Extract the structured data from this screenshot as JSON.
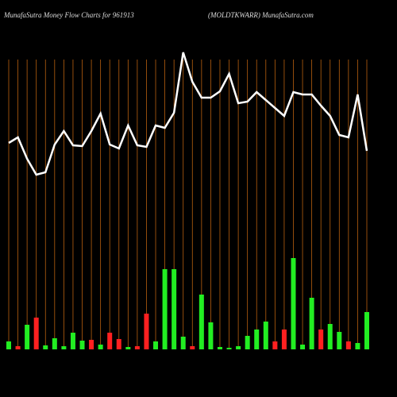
{
  "chart_data": {
    "type": "money-flow",
    "title": "MunafaSutra  Money Flow  Charts for 961913",
    "subtitle": "(MOLDTKWARR) MunafaSutra.com",
    "line": {
      "color": "#ffffff",
      "values": [
        260,
        267,
        240,
        220,
        223,
        258,
        275,
        257,
        256,
        275,
        297,
        258,
        253,
        282,
        257,
        255,
        282,
        279,
        298,
        374,
        337,
        317,
        317,
        325,
        347,
        310,
        312,
        324,
        314,
        304,
        294,
        324,
        321,
        321,
        307,
        294,
        270,
        267,
        321,
        250
      ]
    },
    "bars": {
      "values": [
        10,
        4,
        31,
        40,
        5,
        14,
        4,
        21,
        11,
        12,
        6,
        21,
        13,
        3,
        4,
        45,
        10,
        101,
        101,
        16,
        4,
        69,
        34,
        3,
        2,
        4,
        17,
        25,
        35,
        10,
        25,
        115,
        6,
        65,
        25,
        32,
        22,
        10,
        8,
        47
      ],
      "colors": [
        "#22ee22",
        "#ff2020",
        "#22ee22",
        "#ff2020",
        "#22ee22",
        "#22ee22",
        "#22ee22",
        "#22ee22",
        "#22ee22",
        "#ff2020",
        "#22ee22",
        "#ff2020",
        "#ff2020",
        "#22ee22",
        "#ff2020",
        "#ff2020",
        "#22ee22",
        "#22ee22",
        "#22ee22",
        "#22ee22",
        "#ff2020",
        "#22ee22",
        "#22ee22",
        "#22ee22",
        "#22ee22",
        "#22ee22",
        "#22ee22",
        "#22ee22",
        "#22ee22",
        "#ff2020",
        "#ff2020",
        "#22ee22",
        "#22ee22",
        "#22ee22",
        "#ff2020",
        "#22ee22",
        "#22ee22",
        "#ff2020",
        "#22ee22",
        "#22ee22"
      ]
    },
    "gridline_color": "#b8600f"
  }
}
